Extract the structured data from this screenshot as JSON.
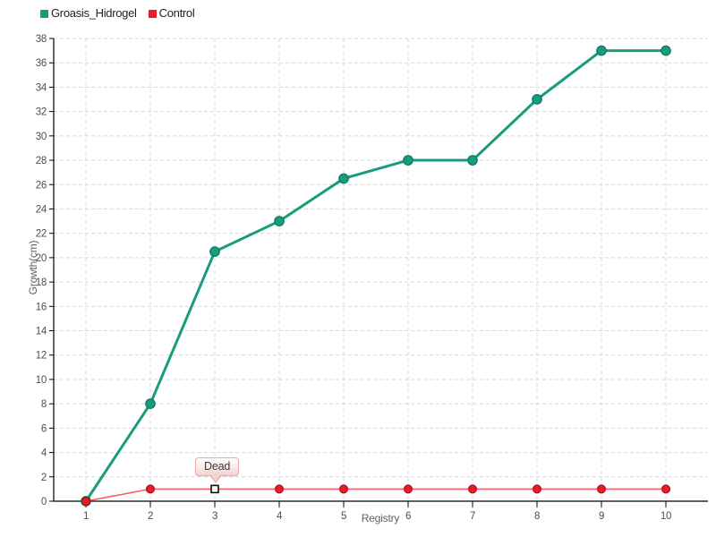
{
  "chart_data": {
    "type": "line",
    "title": "",
    "xlabel": "Registry",
    "ylabel": "Growth(cm)",
    "x_categories": [
      "1",
      "2",
      "3",
      "4",
      "5",
      "6",
      "7",
      "8",
      "9",
      "10"
    ],
    "ylim": [
      0,
      38
    ],
    "y_tick_step": 2,
    "grid": "dashed",
    "legend_position": "top-left",
    "series": [
      {
        "name": "Groasis_Hidrogel",
        "color": "#199c7e",
        "marker_border": "#0f7a62",
        "line_width": 3,
        "marker": "circle",
        "values": [
          0,
          8,
          20.5,
          23,
          26.5,
          28,
          28,
          33,
          37,
          37
        ]
      },
      {
        "name": "Control",
        "color": "#ea1c24",
        "line_color": "#f26065",
        "marker_border": "#a8101a",
        "line_width": 1.6,
        "marker": "circle",
        "values": [
          0,
          1,
          1,
          1,
          1,
          1,
          1,
          1,
          1,
          1
        ]
      }
    ],
    "annotation": {
      "text": "Dead",
      "series": "Control",
      "x_index": 2,
      "value": 1,
      "marker": "white-square"
    }
  },
  "colors": {
    "background": "#ffffff",
    "grid": "#d7d7d7",
    "axis": "#000000",
    "tick_label": "#4d4d4d",
    "axis_title": "#5f5f5f",
    "legend_text": "#1f1f1f",
    "tooltip_border": "#eda9a9",
    "tooltip_text": "#3a3a3a"
  }
}
